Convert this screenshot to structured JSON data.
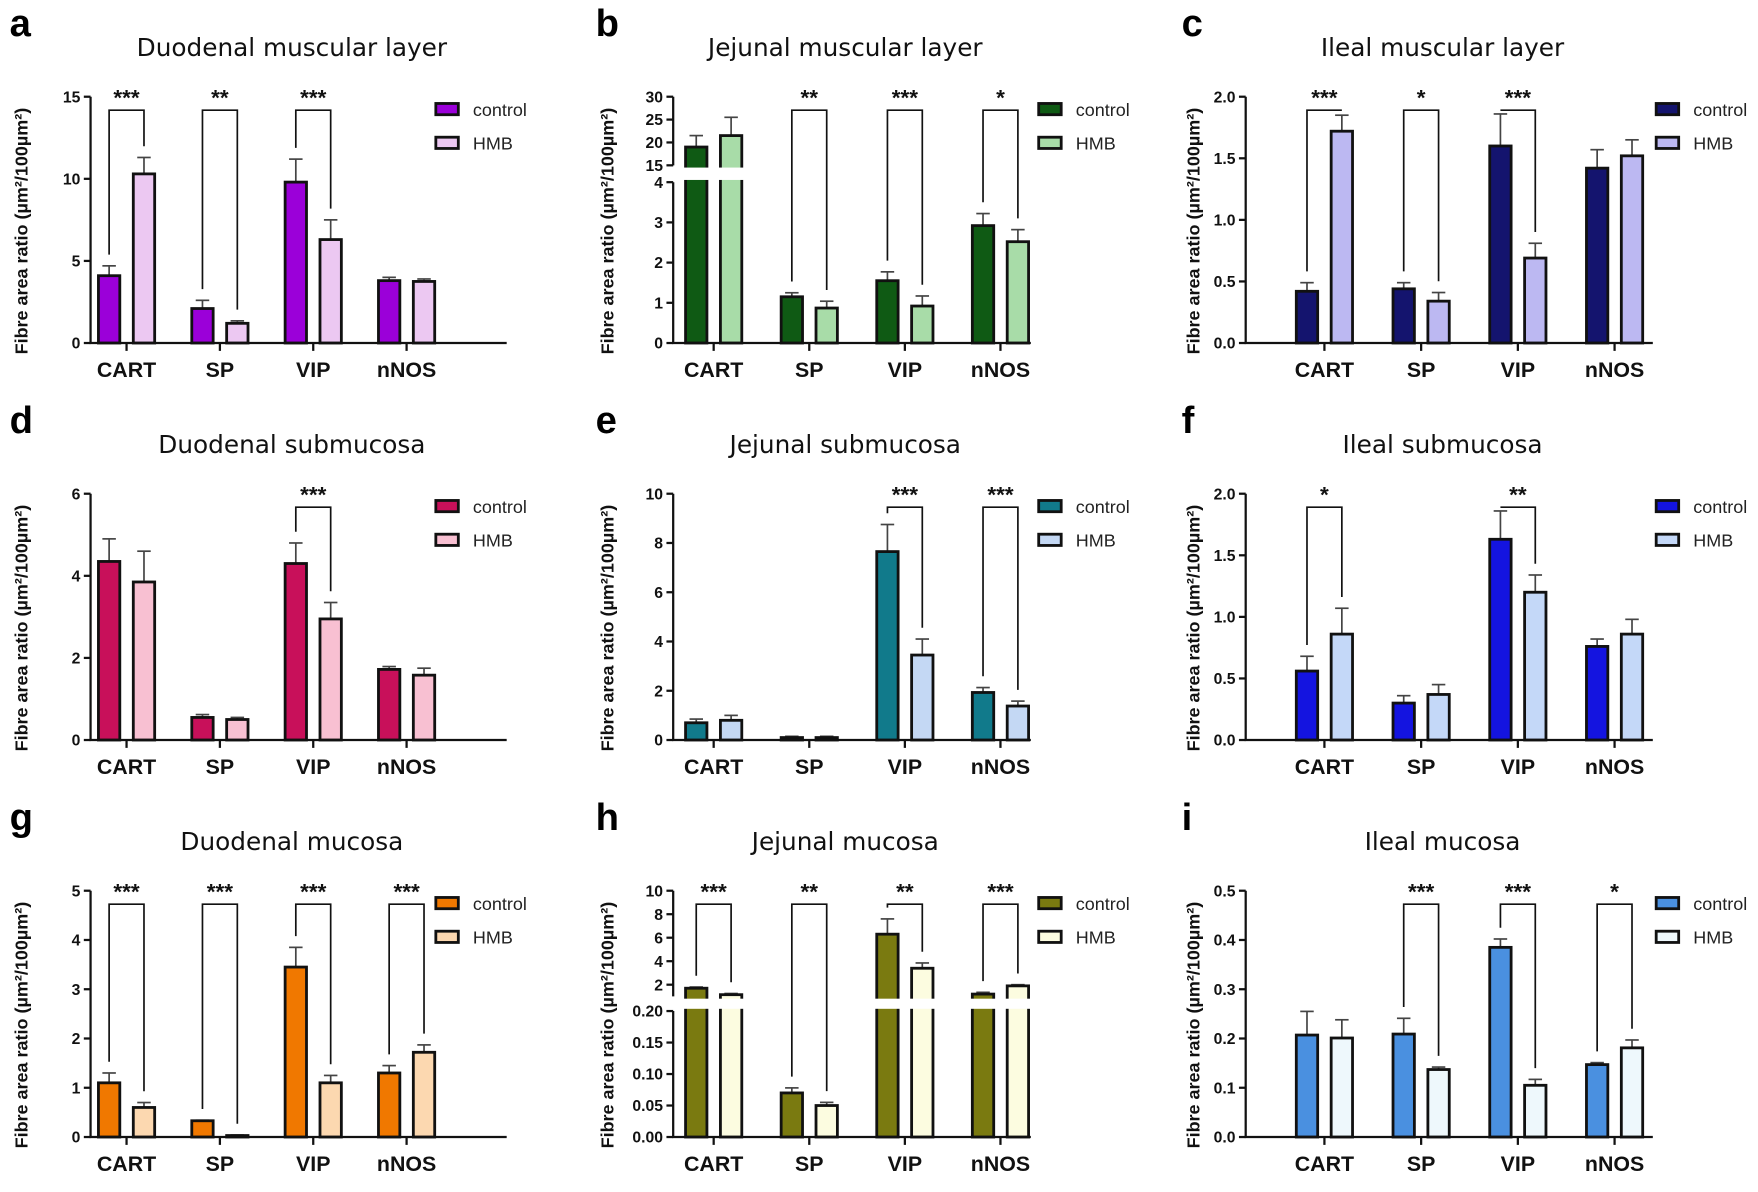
{
  "chart_data": [
    {
      "panel": "a",
      "type": "bar",
      "title": "Duodenal muscular layer",
      "ylabel": "Fibre area ratio (µm²/100µm²)",
      "categories": [
        "CART",
        "SP",
        "VIP",
        "nNOS"
      ],
      "ylim": [
        0,
        15
      ],
      "yticks": [
        0,
        5,
        10,
        15
      ],
      "ytick_labels": [
        "0",
        "5",
        "10",
        "15"
      ],
      "series": [
        {
          "name": "control",
          "color": "#9b00d9",
          "values": [
            4.1,
            2.1,
            9.8,
            3.8
          ],
          "errors": [
            0.6,
            0.5,
            1.4,
            0.2
          ]
        },
        {
          "name": "HMB",
          "color": "#ecc8f2",
          "values": [
            10.3,
            1.2,
            6.3,
            3.75
          ],
          "errors": [
            1.0,
            0.15,
            1.2,
            0.15
          ]
        }
      ],
      "significance": [
        {
          "category": "CART",
          "label": "***"
        },
        {
          "category": "SP",
          "label": "**"
        },
        {
          "category": "VIP",
          "label": "***"
        }
      ]
    },
    {
      "panel": "b",
      "type": "bar",
      "title": "Jejunal muscular layer",
      "ylabel": "Fibre area ratio (µm²/100µm²)",
      "categories": [
        "CART",
        "SP",
        "VIP",
        "nNOS"
      ],
      "broken_axis": {
        "lower": {
          "ylim": [
            0,
            4
          ],
          "yticks": [
            0,
            1,
            2,
            3,
            4
          ],
          "ytick_labels": [
            "0",
            "1",
            "2",
            "3",
            "4"
          ]
        },
        "upper": {
          "ylim": [
            15,
            30
          ],
          "yticks": [
            15,
            20,
            25,
            30
          ],
          "ytick_labels": [
            "15",
            "20",
            "25",
            "30"
          ]
        }
      },
      "series": [
        {
          "name": "control",
          "color": "#0f5a14",
          "values": [
            19,
            1.15,
            1.55,
            2.92
          ],
          "errors": [
            2.5,
            0.1,
            0.22,
            0.3
          ]
        },
        {
          "name": "HMB",
          "color": "#a8dca8",
          "values": [
            21.5,
            0.87,
            0.92,
            2.52
          ],
          "errors": [
            4,
            0.17,
            0.25,
            0.3
          ]
        }
      ],
      "significance": [
        {
          "category": "SP",
          "label": "**"
        },
        {
          "category": "VIP",
          "label": "***"
        },
        {
          "category": "nNOS",
          "label": "*"
        }
      ]
    },
    {
      "panel": "c",
      "type": "bar",
      "title": "Ileal muscular layer",
      "ylabel": "Fibre area ratio (µm²/100µm²)",
      "categories": [
        "CART",
        "SP",
        "VIP",
        "nNOS"
      ],
      "ylim": [
        0,
        2
      ],
      "yticks": [
        0,
        0.5,
        1,
        1.5,
        2
      ],
      "ytick_labels": [
        "0.0",
        "0.5",
        "1.0",
        "1.5",
        "2.0"
      ],
      "series": [
        {
          "name": "control",
          "color": "#14146e",
          "values": [
            0.42,
            0.44,
            1.6,
            1.42
          ],
          "errors": [
            0.07,
            0.05,
            0.26,
            0.15
          ]
        },
        {
          "name": "HMB",
          "color": "#bcb8f2",
          "values": [
            1.72,
            0.34,
            0.69,
            1.52
          ],
          "errors": [
            0.13,
            0.07,
            0.12,
            0.13
          ]
        }
      ],
      "significance": [
        {
          "category": "CART",
          "label": "***"
        },
        {
          "category": "SP",
          "label": "*"
        },
        {
          "category": "VIP",
          "label": "***"
        }
      ]
    },
    {
      "panel": "d",
      "type": "bar",
      "title": "Duodenal submucosa",
      "ylabel": "Fibre area ratio (µm²/100µm²)",
      "categories": [
        "CART",
        "SP",
        "VIP",
        "nNOS"
      ],
      "ylim": [
        0,
        6
      ],
      "yticks": [
        0,
        2,
        4,
        6
      ],
      "ytick_labels": [
        "0",
        "2",
        "4",
        "6"
      ],
      "series": [
        {
          "name": "control",
          "color": "#c8105a",
          "values": [
            4.35,
            0.55,
            4.3,
            1.72
          ],
          "errors": [
            0.55,
            0.07,
            0.5,
            0.07
          ]
        },
        {
          "name": "HMB",
          "color": "#f8c0d2",
          "values": [
            3.85,
            0.5,
            2.95,
            1.58
          ],
          "errors": [
            0.75,
            0.05,
            0.4,
            0.17
          ]
        }
      ],
      "significance": [
        {
          "category": "VIP",
          "label": "***"
        }
      ]
    },
    {
      "panel": "e",
      "type": "bar",
      "title": "Jejunal submucosa",
      "ylabel": "Fibre area ratio (µm²/100µm²)",
      "categories": [
        "CART",
        "SP",
        "VIP",
        "nNOS"
      ],
      "ylim": [
        0,
        10
      ],
      "yticks": [
        0,
        2,
        4,
        6,
        8,
        10
      ],
      "ytick_labels": [
        "0",
        "2",
        "4",
        "6",
        "8",
        "10"
      ],
      "series": [
        {
          "name": "control",
          "color": "#117a8b",
          "values": [
            0.7,
            0.1,
            7.65,
            1.93
          ],
          "errors": [
            0.15,
            0.05,
            1.1,
            0.2
          ]
        },
        {
          "name": "HMB",
          "color": "#c4d8f4",
          "values": [
            0.8,
            0.1,
            3.45,
            1.38
          ],
          "errors": [
            0.2,
            0.05,
            0.65,
            0.2
          ]
        }
      ],
      "significance": [
        {
          "category": "VIP",
          "label": "***"
        },
        {
          "category": "nNOS",
          "label": "***"
        }
      ]
    },
    {
      "panel": "f",
      "type": "bar",
      "title": "Ileal submucosa",
      "ylabel": "Fibre area ratio (µm²/100µm²)",
      "categories": [
        "CART",
        "SP",
        "VIP",
        "nNOS"
      ],
      "ylim": [
        0,
        2
      ],
      "yticks": [
        0,
        0.5,
        1,
        1.5,
        2
      ],
      "ytick_labels": [
        "0.0",
        "0.5",
        "1.0",
        "1.5",
        "2.0"
      ],
      "series": [
        {
          "name": "control",
          "color": "#1414e0",
          "values": [
            0.56,
            0.3,
            1.63,
            0.76
          ],
          "errors": [
            0.12,
            0.06,
            0.23,
            0.06
          ]
        },
        {
          "name": "HMB",
          "color": "#c4d8f8",
          "values": [
            0.86,
            0.37,
            1.2,
            0.86
          ],
          "errors": [
            0.21,
            0.08,
            0.14,
            0.12
          ]
        }
      ],
      "significance": [
        {
          "category": "CART",
          "label": "*"
        },
        {
          "category": "VIP",
          "label": "**"
        }
      ]
    },
    {
      "panel": "g",
      "type": "bar",
      "title": "Duodenal mucosa",
      "ylabel": "Fibre area ratio (µm²/100µm²)",
      "categories": [
        "CART",
        "SP",
        "VIP",
        "nNOS"
      ],
      "ylim": [
        0,
        5
      ],
      "yticks": [
        0,
        1,
        2,
        3,
        4,
        5
      ],
      "ytick_labels": [
        "0",
        "1",
        "2",
        "3",
        "4",
        "5"
      ],
      "series": [
        {
          "name": "control",
          "color": "#f07800",
          "values": [
            1.1,
            0.33,
            3.45,
            1.3
          ],
          "errors": [
            0.2,
            0.01,
            0.4,
            0.15
          ]
        },
        {
          "name": "HMB",
          "color": "#fcd8b0",
          "values": [
            0.6,
            0.03,
            1.1,
            1.72
          ],
          "errors": [
            0.1,
            0.01,
            0.15,
            0.15
          ]
        }
      ],
      "significance": [
        {
          "category": "CART",
          "label": "***"
        },
        {
          "category": "SP",
          "label": "***"
        },
        {
          "category": "VIP",
          "label": "***"
        },
        {
          "category": "nNOS",
          "label": "***"
        }
      ]
    },
    {
      "panel": "h",
      "type": "bar",
      "title": "Jejunal mucosa",
      "ylabel": "Fibre area ratio (µm²/100µm²)",
      "categories": [
        "CART",
        "SP",
        "VIP",
        "nNOS"
      ],
      "broken_axis": {
        "lower": {
          "ylim": [
            0,
            0.2
          ],
          "yticks": [
            0,
            0.05,
            0.1,
            0.15,
            0.2
          ],
          "ytick_labels": [
            "0.00",
            "0.05",
            "0.10",
            "0.15",
            "0.20"
          ]
        },
        "upper": {
          "ylim": [
            1,
            10
          ],
          "yticks": [
            2,
            4,
            6,
            8,
            10
          ],
          "ytick_labels": [
            "2",
            "4",
            "6",
            "8",
            "10"
          ]
        }
      },
      "series": [
        {
          "name": "control",
          "color": "#7a7a10",
          "values": [
            1.7,
            0.07,
            6.3,
            1.2
          ],
          "errors": [
            0.1,
            0.008,
            1.3,
            0.15
          ]
        },
        {
          "name": "HMB",
          "color": "#fcfce0",
          "values": [
            1.15,
            0.05,
            3.4,
            1.9
          ],
          "errors": [
            0.1,
            0.005,
            0.45,
            0.1
          ]
        }
      ],
      "significance": [
        {
          "category": "CART",
          "label": "***"
        },
        {
          "category": "SP",
          "label": "**"
        },
        {
          "category": "VIP",
          "label": "**"
        },
        {
          "category": "nNOS",
          "label": "***"
        }
      ]
    },
    {
      "panel": "i",
      "type": "bar",
      "title": "Ileal mucosa",
      "ylabel": "Fibre area ratio (µm²/100µm²)",
      "categories": [
        "CART",
        "SP",
        "VIP",
        "nNOS"
      ],
      "ylim": [
        0,
        0.5
      ],
      "yticks": [
        0,
        0.1,
        0.2,
        0.3,
        0.4,
        0.5
      ],
      "ytick_labels": [
        "0.0",
        "0.1",
        "0.2",
        "0.3",
        "0.4",
        "0.5"
      ],
      "series": [
        {
          "name": "control",
          "color": "#4a90e0",
          "values": [
            0.207,
            0.209,
            0.385,
            0.147
          ],
          "errors": [
            0.048,
            0.032,
            0.017,
            0.004
          ]
        },
        {
          "name": "HMB",
          "color": "#eef8fc",
          "values": [
            0.201,
            0.137,
            0.105,
            0.181
          ],
          "errors": [
            0.037,
            0.005,
            0.012,
            0.016
          ]
        }
      ],
      "significance": [
        {
          "category": "SP",
          "label": "***"
        },
        {
          "category": "VIP",
          "label": "***"
        },
        {
          "category": "nNOS",
          "label": "*"
        }
      ]
    }
  ]
}
